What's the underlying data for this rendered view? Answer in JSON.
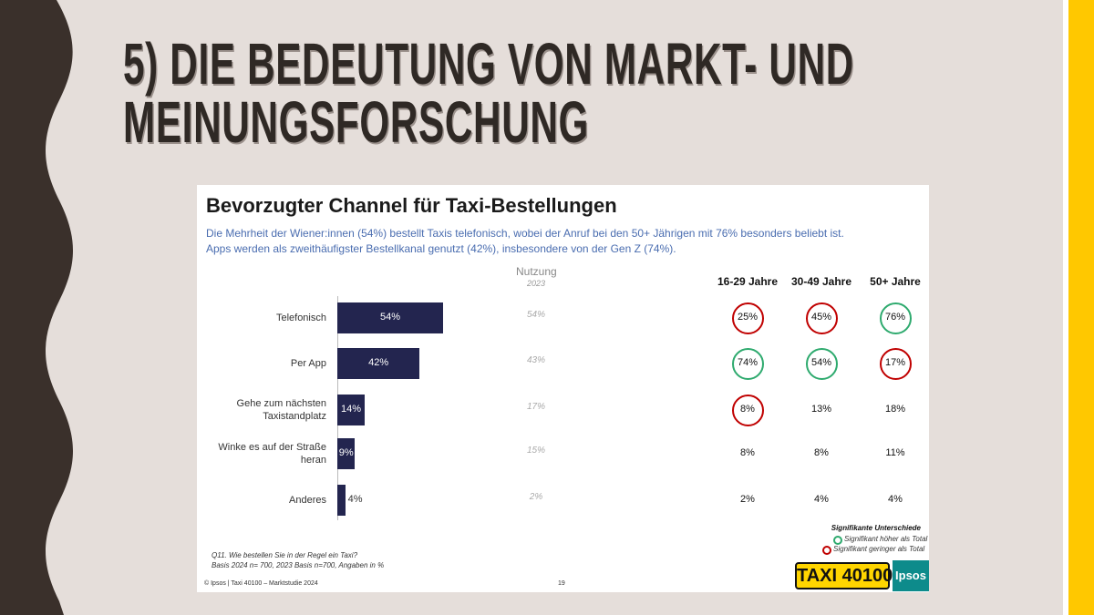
{
  "slide_title": "5) DIE BEDEUTUNG VON MARKT- UND MEINUNGSFORSCHUNG",
  "chart_data": {
    "type": "bar",
    "orientation": "horizontal",
    "title": "Bevorzugter Channel für Taxi-Bestellungen",
    "subtitle": [
      "Die Mehrheit der Wiener:innen (54%) bestellt Taxis telefonisch, wobei der Anruf bei den 50+ Jährigen mit 76% besonders beliebt ist.",
      "Apps werden als zweithäufigster Bestellkanal genutzt (42%), insbesondere von der Gen Z (74%)."
    ],
    "categories": [
      "Telefonisch",
      "Per App",
      "Gehe zum nächsten Taxistandplatz",
      "Winke es auf der Straße heran",
      "Anderes"
    ],
    "values": [
      54,
      42,
      14,
      9,
      4
    ],
    "value_labels": [
      "54%",
      "42%",
      "14%",
      "9%",
      "4%"
    ],
    "color": "#23254f",
    "xlim": [
      0,
      100
    ]
  },
  "comparison": {
    "header": "Nutzung",
    "subheader": "2023",
    "values": [
      "54%",
      "43%",
      "17%",
      "15%",
      "2%"
    ]
  },
  "segments": {
    "columns": [
      "16-29 Jahre",
      "30-49 Jahre",
      "50+ Jahre"
    ],
    "rows": [
      [
        "25%",
        "45%",
        "76%"
      ],
      [
        "74%",
        "54%",
        "17%"
      ],
      [
        "8%",
        "13%",
        "18%"
      ],
      [
        "8%",
        "8%",
        "11%"
      ],
      [
        "2%",
        "4%",
        "4%"
      ]
    ],
    "circles": [
      [
        "#c00000",
        "#c00000",
        "#2eaa6e"
      ],
      [
        "#2eaa6e",
        "#2eaa6e",
        "#c00000"
      ],
      [
        "#c00000",
        null,
        null
      ],
      [
        null,
        null,
        null
      ],
      [
        null,
        null,
        null
      ]
    ]
  },
  "legend": {
    "title": "Signifikante Unterschiede",
    "items": [
      {
        "label": "Signifikant höher als Total",
        "color": "#2eaa6e"
      },
      {
        "label": "Signifikant geringer als Total",
        "color": "#c00000"
      }
    ]
  },
  "footnote": [
    "Q11. Wie bestellen Sie in der Regel ein Taxi?",
    "Basis 2024 n= 700, 2023 Basis n=700, Angaben in %"
  ],
  "footer": "© Ipsos | Taxi 40100 – Marktstudie 2024",
  "page_number": "19",
  "logos": [
    "TAXI 40100",
    "Ipsos"
  ]
}
